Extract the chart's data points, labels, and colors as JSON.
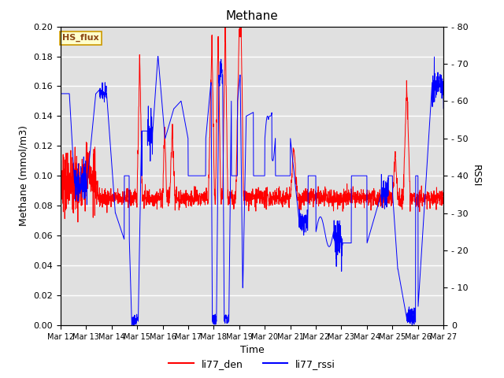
{
  "title": "Methane",
  "xlabel": "Time",
  "ylabel_left": "Methane (mmol/m3)",
  "ylabel_right": "RSSI",
  "ylim_left": [
    0.0,
    0.2
  ],
  "ylim_right": [
    0,
    80
  ],
  "yticks_left": [
    0.0,
    0.02,
    0.04,
    0.06,
    0.08,
    0.1,
    0.12,
    0.14,
    0.16,
    0.18,
    0.2
  ],
  "yticks_right": [
    0,
    10,
    20,
    30,
    40,
    50,
    60,
    70,
    80
  ],
  "xtick_labels": [
    "Mar 12",
    "Mar 13",
    "Mar 14",
    "Mar 15",
    "Mar 16",
    "Mar 17",
    "Mar 18",
    "Mar 19",
    "Mar 20",
    "Mar 21",
    "Mar 22",
    "Mar 23",
    "Mar 24",
    "Mar 25",
    "Mar 26",
    "Mar 27"
  ],
  "color_red": "#ff0000",
  "color_blue": "#0000ff",
  "legend_entries": [
    "li77_den",
    "li77_rssi"
  ],
  "box_label": "HS_flux",
  "bg_color": "#e0e0e0",
  "grid_color": "#ffffff",
  "title_fontsize": 11,
  "label_fontsize": 9,
  "tick_fontsize": 8
}
